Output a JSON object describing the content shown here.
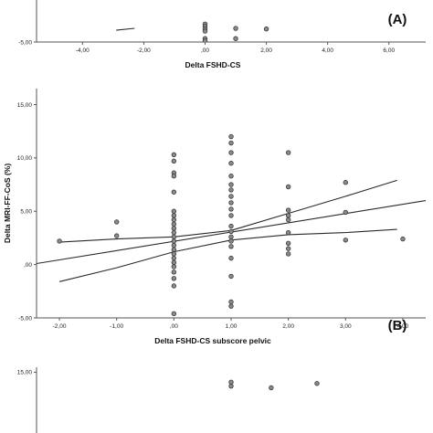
{
  "chart_data": [
    {
      "type": "scatter",
      "panel_label": "(A)",
      "xlabel": "Delta FSHD-CS",
      "ylabel": "",
      "xlim": [
        -5.5,
        7.2
      ],
      "ylim": [
        -5,
        15
      ],
      "x_ticks": [
        "-4,00",
        "-2,00",
        ",00",
        "2,00",
        "4,00",
        "6,00"
      ],
      "x_tick_values": [
        -4,
        -2,
        0,
        2,
        4,
        6
      ],
      "y_ticks": [
        "-5,00"
      ],
      "y_tick_values": [
        -5
      ],
      "points": [
        {
          "x": 0,
          "y": 0.8
        },
        {
          "x": 0,
          "y": 0.0
        },
        {
          "x": 0,
          "y": -0.8
        },
        {
          "x": 0,
          "y": -1.5
        },
        {
          "x": 0,
          "y": -3.9
        },
        {
          "x": 0,
          "y": -4.6
        },
        {
          "x": 1,
          "y": -3.9
        },
        {
          "x": 1,
          "y": -0.6
        },
        {
          "x": 2,
          "y": -0.8
        }
      ],
      "fit_lines": [
        {
          "name": "fit",
          "x": [
            -2.9,
            -2.3
          ],
          "y": [
            -1.2,
            -0.6
          ]
        }
      ]
    },
    {
      "type": "scatter",
      "panel_label": "(B)",
      "xlabel": "Delta FSHD-CS subscore pelvic",
      "ylabel": "Delta MRI-FF-CoS (%)",
      "xlim": [
        -2.4,
        4.4
      ],
      "ylim": [
        -5,
        16.5
      ],
      "x_ticks": [
        "-2,00",
        "-1,00",
        ",00",
        "1,00",
        "2,00",
        "3,00",
        "4,00"
      ],
      "x_tick_values": [
        -2,
        -1,
        0,
        1,
        2,
        3,
        4
      ],
      "y_ticks": [
        "-5,00",
        ",00",
        "5,00",
        "10,00",
        "15,00"
      ],
      "y_tick_values": [
        -5,
        0,
        5,
        10,
        15
      ],
      "points": [
        {
          "x": -2,
          "y": 2.2
        },
        {
          "x": -1,
          "y": 4.0
        },
        {
          "x": -1,
          "y": 2.7
        },
        {
          "x": 0,
          "y": 10.3
        },
        {
          "x": 0,
          "y": 9.7
        },
        {
          "x": 0,
          "y": 8.6
        },
        {
          "x": 0,
          "y": 8.3
        },
        {
          "x": 0,
          "y": 6.8
        },
        {
          "x": 0,
          "y": 5.0
        },
        {
          "x": 0,
          "y": 4.6
        },
        {
          "x": 0,
          "y": 4.2
        },
        {
          "x": 0,
          "y": 3.8
        },
        {
          "x": 0,
          "y": 3.4
        },
        {
          "x": 0,
          "y": 3.0
        },
        {
          "x": 0,
          "y": 2.6
        },
        {
          "x": 0,
          "y": 2.2
        },
        {
          "x": 0,
          "y": 1.8
        },
        {
          "x": 0,
          "y": 1.4
        },
        {
          "x": 0,
          "y": 1.0
        },
        {
          "x": 0,
          "y": 0.6
        },
        {
          "x": 0,
          "y": 0.2
        },
        {
          "x": 0,
          "y": -0.2
        },
        {
          "x": 0,
          "y": -0.7
        },
        {
          "x": 0,
          "y": -1.3
        },
        {
          "x": 0,
          "y": -2.0
        },
        {
          "x": 0,
          "y": -4.6
        },
        {
          "x": 1,
          "y": 12.0
        },
        {
          "x": 1,
          "y": 11.4
        },
        {
          "x": 1,
          "y": 10.5
        },
        {
          "x": 1,
          "y": 9.5
        },
        {
          "x": 1,
          "y": 8.3
        },
        {
          "x": 1,
          "y": 7.5
        },
        {
          "x": 1,
          "y": 7.0
        },
        {
          "x": 1,
          "y": 6.4
        },
        {
          "x": 1,
          "y": 5.8
        },
        {
          "x": 1,
          "y": 5.2
        },
        {
          "x": 1,
          "y": 4.6
        },
        {
          "x": 1,
          "y": 3.6
        },
        {
          "x": 1,
          "y": 3.1
        },
        {
          "x": 1,
          "y": 2.6
        },
        {
          "x": 1,
          "y": 2.2
        },
        {
          "x": 1,
          "y": 1.7
        },
        {
          "x": 1,
          "y": 0.6
        },
        {
          "x": 1,
          "y": -1.1
        },
        {
          "x": 1,
          "y": -3.5
        },
        {
          "x": 1,
          "y": -3.9
        },
        {
          "x": 2,
          "y": 10.5
        },
        {
          "x": 2,
          "y": 7.3
        },
        {
          "x": 2,
          "y": 5.1
        },
        {
          "x": 2,
          "y": 4.6
        },
        {
          "x": 2,
          "y": 4.2
        },
        {
          "x": 2,
          "y": 3.0
        },
        {
          "x": 2,
          "y": 2.0
        },
        {
          "x": 2,
          "y": 1.5
        },
        {
          "x": 2,
          "y": 1.0
        },
        {
          "x": 3,
          "y": 7.7
        },
        {
          "x": 3,
          "y": 4.9
        },
        {
          "x": 3,
          "y": 2.3
        },
        {
          "x": 4,
          "y": 2.4
        }
      ],
      "fit_lines": [
        {
          "name": "regression",
          "x": [
            -2.4,
            4.4
          ],
          "y": [
            0.1,
            6.0
          ]
        },
        {
          "name": "upper-ci",
          "x": [
            -2,
            -1,
            0,
            1,
            2,
            3,
            3.9
          ],
          "y": [
            2.1,
            2.4,
            2.6,
            3.2,
            4.8,
            6.4,
            7.9
          ]
        },
        {
          "name": "lower-ci",
          "x": [
            -2,
            -1,
            0,
            1,
            2,
            3,
            3.9
          ],
          "y": [
            -1.6,
            -0.3,
            1.2,
            2.3,
            2.8,
            3.0,
            3.3
          ]
        }
      ]
    },
    {
      "type": "scatter",
      "panel_label": "",
      "xlabel": "",
      "ylabel": "",
      "xlim": [
        -2.4,
        4.4
      ],
      "ylim": [
        -5,
        16.5
      ],
      "x_ticks": [],
      "x_tick_values": [],
      "y_ticks": [
        "15,00"
      ],
      "y_tick_values": [
        15
      ],
      "points": [
        {
          "x": 1,
          "y": 12.0
        },
        {
          "x": 1,
          "y": 10.8
        },
        {
          "x": 1.7,
          "y": 10.3
        },
        {
          "x": 2.5,
          "y": 11.6
        }
      ],
      "fit_lines": []
    }
  ],
  "colors": {
    "point_fill": "#8a8a8a",
    "point_stroke": "#3a3a3a",
    "line": "#2a2a2a",
    "axis": "#555555"
  }
}
